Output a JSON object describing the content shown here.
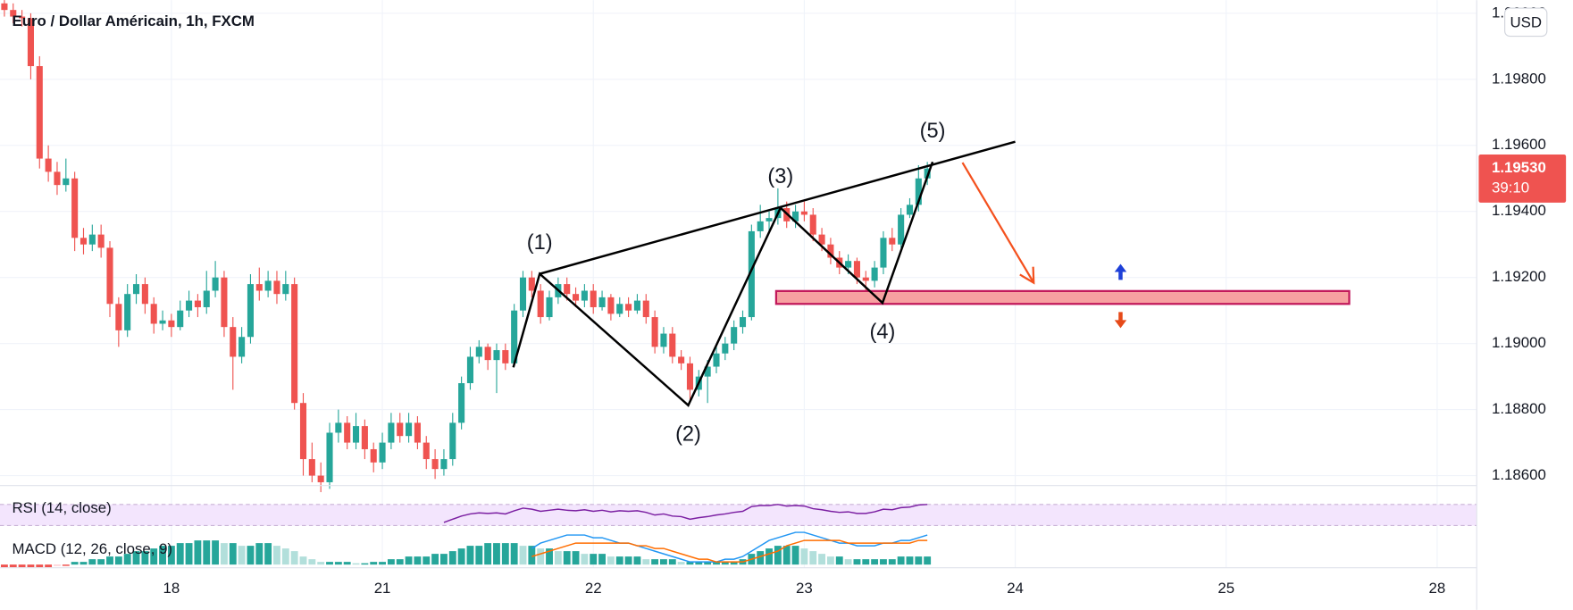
{
  "chart_data": {
    "type": "candlestick",
    "title": "Euro / Dollar Américain, 1h, FXCM",
    "currency": "USD",
    "up_color": "#26a69a",
    "down_color": "#ef5350",
    "grid": true,
    "xlim": [
      -0.5,
      167.5
    ],
    "xticks": [
      {
        "value": 19,
        "label": "18"
      },
      {
        "value": 43,
        "label": "21"
      },
      {
        "value": 67,
        "label": "22"
      },
      {
        "value": 91,
        "label": "23"
      },
      {
        "value": 115,
        "label": "24"
      },
      {
        "value": 139,
        "label": "25"
      },
      {
        "value": 163,
        "label": "28"
      }
    ],
    "ylim": [
      1.1857,
      1.2004
    ],
    "yticks": [
      {
        "value": 1.186,
        "label": "1.18600"
      },
      {
        "value": 1.188,
        "label": "1.18800"
      },
      {
        "value": 1.19,
        "label": "1.19000"
      },
      {
        "value": 1.192,
        "label": "1.19200"
      },
      {
        "value": 1.194,
        "label": "1.19400"
      },
      {
        "value": 1.196,
        "label": "1.19600"
      },
      {
        "value": 1.198,
        "label": "1.19800"
      },
      {
        "value": 1.2,
        "label": "1.20000"
      }
    ],
    "last_price": {
      "value": 1.1953,
      "label": "1.19530"
    },
    "countdown": "39:10",
    "candles": [
      [
        1.2003,
        1.2004,
        1.1999,
        1.2001
      ],
      [
        1.2001,
        1.2003,
        1.1997,
        1.1999
      ],
      [
        1.1999,
        1.2001,
        1.1996,
        1.19985
      ],
      [
        1.19985,
        1.2,
        1.198,
        1.1984
      ],
      [
        1.1984,
        1.1987,
        1.1953,
        1.1956
      ],
      [
        1.1956,
        1.196,
        1.1949,
        1.1952
      ],
      [
        1.1952,
        1.1955,
        1.1945,
        1.1948
      ],
      [
        1.1948,
        1.1956,
        1.1946,
        1.195
      ],
      [
        1.195,
        1.1952,
        1.1928,
        1.1932
      ],
      [
        1.1932,
        1.1935,
        1.1927,
        1.193
      ],
      [
        1.193,
        1.1936,
        1.1928,
        1.1933
      ],
      [
        1.1933,
        1.1936,
        1.1926,
        1.1929
      ],
      [
        1.1929,
        1.1931,
        1.1908,
        1.1912
      ],
      [
        1.1912,
        1.1914,
        1.1899,
        1.1904
      ],
      [
        1.1904,
        1.1918,
        1.1902,
        1.1915
      ],
      [
        1.1915,
        1.1921,
        1.1912,
        1.1918
      ],
      [
        1.1918,
        1.192,
        1.1909,
        1.1912
      ],
      [
        1.1912,
        1.1914,
        1.1903,
        1.1906
      ],
      [
        1.1906,
        1.191,
        1.1904,
        1.1907
      ],
      [
        1.1907,
        1.1909,
        1.1902,
        1.1905
      ],
      [
        1.1905,
        1.1913,
        1.1904,
        1.191
      ],
      [
        1.191,
        1.1916,
        1.1908,
        1.1913
      ],
      [
        1.1913,
        1.1915,
        1.1908,
        1.1911
      ],
      [
        1.1911,
        1.1922,
        1.1909,
        1.1916
      ],
      [
        1.1916,
        1.1925,
        1.1914,
        1.192
      ],
      [
        1.192,
        1.1922,
        1.1902,
        1.1905
      ],
      [
        1.1905,
        1.1908,
        1.1886,
        1.1896
      ],
      [
        1.1896,
        1.1905,
        1.1894,
        1.1902
      ],
      [
        1.1902,
        1.1921,
        1.19,
        1.1918
      ],
      [
        1.1918,
        1.1923,
        1.1913,
        1.1916
      ],
      [
        1.1916,
        1.1922,
        1.1914,
        1.1919
      ],
      [
        1.1919,
        1.1922,
        1.1912,
        1.1915
      ],
      [
        1.1915,
        1.1922,
        1.1913,
        1.1918
      ],
      [
        1.1918,
        1.192,
        1.188,
        1.1882
      ],
      [
        1.1882,
        1.1885,
        1.186,
        1.1865
      ],
      [
        1.1865,
        1.187,
        1.1858,
        1.186
      ],
      [
        1.186,
        1.1864,
        1.1855,
        1.1858
      ],
      [
        1.1858,
        1.1876,
        1.1856,
        1.1873
      ],
      [
        1.1873,
        1.188,
        1.187,
        1.1876
      ],
      [
        1.1876,
        1.1878,
        1.1868,
        1.187
      ],
      [
        1.187,
        1.1879,
        1.1868,
        1.1875
      ],
      [
        1.1875,
        1.1877,
        1.1865,
        1.1868
      ],
      [
        1.1868,
        1.187,
        1.1861,
        1.1864
      ],
      [
        1.1864,
        1.1873,
        1.1862,
        1.187
      ],
      [
        1.187,
        1.1879,
        1.1868,
        1.1876
      ],
      [
        1.1876,
        1.1879,
        1.187,
        1.1872
      ],
      [
        1.1872,
        1.1879,
        1.187,
        1.1876
      ],
      [
        1.1876,
        1.1878,
        1.1868,
        1.187
      ],
      [
        1.187,
        1.1872,
        1.1862,
        1.1865
      ],
      [
        1.1865,
        1.1868,
        1.1859,
        1.1862
      ],
      [
        1.1862,
        1.1868,
        1.186,
        1.1865
      ],
      [
        1.1865,
        1.1879,
        1.1863,
        1.1876
      ],
      [
        1.1876,
        1.189,
        1.1874,
        1.1888
      ],
      [
        1.1888,
        1.1899,
        1.1886,
        1.1896
      ],
      [
        1.1896,
        1.1901,
        1.1894,
        1.1899
      ],
      [
        1.1899,
        1.19,
        1.1892,
        1.1895
      ],
      [
        1.1895,
        1.19,
        1.1885,
        1.1898
      ],
      [
        1.1898,
        1.19,
        1.1892,
        1.1894
      ],
      [
        1.1894,
        1.1912,
        1.1893,
        1.191
      ],
      [
        1.191,
        1.1922,
        1.1908,
        1.192
      ],
      [
        1.192,
        1.1922,
        1.1914,
        1.1916
      ],
      [
        1.1916,
        1.1918,
        1.1906,
        1.1908
      ],
      [
        1.1908,
        1.1916,
        1.1907,
        1.1914
      ],
      [
        1.1914,
        1.192,
        1.1912,
        1.1918
      ],
      [
        1.1918,
        1.192,
        1.1913,
        1.1915
      ],
      [
        1.1915,
        1.1917,
        1.1911,
        1.1913
      ],
      [
        1.1913,
        1.1918,
        1.1911,
        1.1916
      ],
      [
        1.1916,
        1.1918,
        1.1909,
        1.1911
      ],
      [
        1.1911,
        1.1916,
        1.191,
        1.1914
      ],
      [
        1.1914,
        1.1915,
        1.1907,
        1.1909
      ],
      [
        1.1909,
        1.1914,
        1.1908,
        1.1912
      ],
      [
        1.1912,
        1.1914,
        1.1908,
        1.191
      ],
      [
        1.191,
        1.1915,
        1.1909,
        1.1913
      ],
      [
        1.1913,
        1.1915,
        1.1906,
        1.1908
      ],
      [
        1.1908,
        1.191,
        1.1897,
        1.1899
      ],
      [
        1.1899,
        1.1905,
        1.1897,
        1.1903
      ],
      [
        1.1903,
        1.1905,
        1.1894,
        1.1896
      ],
      [
        1.1896,
        1.1898,
        1.1892,
        1.1894
      ],
      [
        1.1894,
        1.1896,
        1.1882,
        1.1886
      ],
      [
        1.1886,
        1.1892,
        1.1884,
        1.189
      ],
      [
        1.189,
        1.1895,
        1.1882,
        1.1893
      ],
      [
        1.1893,
        1.1899,
        1.1891,
        1.1897
      ],
      [
        1.1897,
        1.1902,
        1.1895,
        1.19
      ],
      [
        1.19,
        1.1907,
        1.1898,
        1.1905
      ],
      [
        1.1905,
        1.191,
        1.1903,
        1.1908
      ],
      [
        1.1908,
        1.1936,
        1.1907,
        1.1934
      ],
      [
        1.1934,
        1.1942,
        1.1932,
        1.1937
      ],
      [
        1.1937,
        1.194,
        1.1934,
        1.1938
      ],
      [
        1.1938,
        1.1947,
        1.1936,
        1.1941
      ],
      [
        1.1941,
        1.1943,
        1.1935,
        1.1937
      ],
      [
        1.1937,
        1.1942,
        1.1935,
        1.194
      ],
      [
        1.194,
        1.1943,
        1.1937,
        1.1939
      ],
      [
        1.1939,
        1.1941,
        1.1931,
        1.1933
      ],
      [
        1.1933,
        1.1935,
        1.1928,
        1.193
      ],
      [
        1.193,
        1.1932,
        1.1924,
        1.1926
      ],
      [
        1.1926,
        1.1928,
        1.1921,
        1.1923
      ],
      [
        1.1923,
        1.1927,
        1.1921,
        1.1925
      ],
      [
        1.1925,
        1.1926,
        1.1918,
        1.192
      ],
      [
        1.192,
        1.1922,
        1.1914,
        1.1919
      ],
      [
        1.1919,
        1.1925,
        1.1917,
        1.1923
      ],
      [
        1.1923,
        1.1934,
        1.1921,
        1.1932
      ],
      [
        1.1932,
        1.1935,
        1.1928,
        1.193
      ],
      [
        1.193,
        1.1941,
        1.1929,
        1.1939
      ],
      [
        1.1939,
        1.1944,
        1.1938,
        1.1942
      ],
      [
        1.1942,
        1.1954,
        1.194,
        1.195
      ],
      [
        1.195,
        1.1955,
        1.1948,
        1.1953
      ]
    ],
    "wave": {
      "color": "#000000",
      "points": [
        [
          57.9,
          1.18928
        ],
        [
          60.9,
          1.19211
        ],
        [
          77.8,
          1.18813
        ],
        [
          88.3,
          1.19411
        ],
        [
          99.9,
          1.19123
        ],
        [
          105.6,
          1.1955
        ]
      ],
      "labels": [
        "(1)",
        "(2)",
        "(3)",
        "(4)",
        "(5)"
      ]
    },
    "trendline": {
      "color": "#000000",
      "points": [
        [
          60.9,
          1.19211
        ],
        [
          115,
          1.19611
        ]
      ]
    },
    "zone": {
      "x": [
        87.8,
        153
      ],
      "y": [
        1.1912,
        1.19159
      ],
      "fill": "#f7a1a1",
      "stroke": "#c2185b"
    },
    "arrow": {
      "color": "#f4511e",
      "from": [
        109,
        1.19548
      ],
      "to": [
        117.1,
        1.19184
      ]
    },
    "rsi": {
      "title": "RSI (14, close)",
      "color": "#7b1fa2",
      "band_color": "#f3e5fd",
      "bands": [
        30,
        70
      ],
      "ylim": [
        26,
        102
      ],
      "values": [
        null,
        null,
        null,
        null,
        null,
        null,
        null,
        null,
        null,
        null,
        null,
        null,
        null,
        null,
        null,
        null,
        null,
        null,
        null,
        null,
        null,
        null,
        null,
        null,
        null,
        null,
        null,
        null,
        null,
        null,
        null,
        null,
        null,
        null,
        null,
        null,
        null,
        null,
        null,
        null,
        null,
        null,
        null,
        null,
        null,
        null,
        null,
        null,
        null,
        null,
        36,
        42,
        48,
        52,
        54,
        53,
        54,
        52,
        58,
        63,
        61,
        57,
        59,
        61,
        59,
        58,
        60,
        57,
        59,
        56,
        58,
        57,
        58,
        55,
        50,
        52,
        48,
        47,
        42,
        45,
        47,
        50,
        52,
        55,
        57,
        66,
        68,
        68,
        70,
        67,
        68,
        67,
        62,
        60,
        57,
        55,
        56,
        53,
        53,
        56,
        61,
        60,
        64,
        65,
        69,
        70
      ]
    },
    "macd": {
      "title": "MACD (12, 26, close, 9)",
      "ylim": [
        -0.00012,
        0.0013
      ],
      "macd_color": "#2196f3",
      "signal_color": "#ff6d00",
      "hist_colors": [
        "#26a69a",
        "#b2dfdb",
        "#ef5350",
        "#ffcdd2"
      ],
      "histogram": [
        -0.0001,
        -0.0001,
        -0.0001,
        -0.0001,
        -0.0001,
        -0.0001,
        -5e-05,
        -5e-05,
        0.0001,
        0.0001,
        0.0002,
        0.0002,
        0.0003,
        0.0003,
        0.0004,
        0.0005,
        0.0005,
        0.0006,
        0.0007,
        0.0007,
        0.0008,
        0.0008,
        0.0009,
        0.0009,
        0.0009,
        0.0008,
        0.0008,
        0.0007,
        0.0007,
        0.0008,
        0.0008,
        0.0007,
        0.0006,
        0.0005,
        0.0003,
        0.0002,
        0.0001,
        0.0001,
        0.0001,
        0.0001,
        5e-05,
        5e-05,
        0.0001,
        0.0001,
        0.0002,
        0.0002,
        0.0003,
        0.0003,
        0.0003,
        0.0004,
        0.0004,
        0.0005,
        0.0006,
        0.0007,
        0.0007,
        0.0008,
        0.0008,
        0.0008,
        0.0008,
        0.0007,
        0.0007,
        0.0006,
        0.0006,
        0.0005,
        0.0005,
        0.0005,
        0.0004,
        0.0004,
        0.0004,
        0.0003,
        0.0003,
        0.0003,
        0.0003,
        0.0002,
        0.0002,
        0.0002,
        0.0002,
        0.0001,
        0.0001,
        0.0001,
        0.0001,
        0.0001,
        0.0001,
        0.0001,
        0.0002,
        0.0004,
        0.0005,
        0.0006,
        0.0007,
        0.0007,
        0.0007,
        0.0006,
        0.0005,
        0.0004,
        0.0003,
        0.0003,
        0.0002,
        0.0002,
        0.0002,
        0.0002,
        0.0002,
        0.0002,
        0.0003,
        0.0003,
        0.0003,
        0.0003
      ],
      "macd": [
        null,
        null,
        null,
        null,
        null,
        null,
        null,
        null,
        null,
        null,
        null,
        null,
        null,
        null,
        null,
        null,
        null,
        null,
        null,
        null,
        null,
        null,
        null,
        null,
        null,
        null,
        null,
        null,
        null,
        null,
        null,
        null,
        null,
        null,
        null,
        null,
        null,
        null,
        null,
        null,
        null,
        null,
        null,
        null,
        null,
        null,
        null,
        null,
        null,
        null,
        null,
        null,
        null,
        null,
        null,
        null,
        null,
        null,
        null,
        null,
        0.0006,
        0.0008,
        0.0009,
        0.001,
        0.0011,
        0.0011,
        0.0011,
        0.001,
        0.001,
        0.0009,
        0.0008,
        0.0008,
        0.0007,
        0.0006,
        0.0005,
        0.0004,
        0.0003,
        0.0002,
        0.0001,
        0.0001,
        0.0001,
        0.0001,
        0.0002,
        0.0002,
        0.0003,
        0.0005,
        0.0007,
        0.0009,
        0.001,
        0.0011,
        0.0012,
        0.0012,
        0.0011,
        0.001,
        0.0009,
        0.0008,
        0.0008,
        0.0007,
        0.0007,
        0.0007,
        0.0008,
        0.0008,
        0.0009,
        0.0009,
        0.001,
        0.0011
      ],
      "signal": [
        null,
        null,
        null,
        null,
        null,
        null,
        null,
        null,
        null,
        null,
        null,
        null,
        null,
        null,
        null,
        null,
        null,
        null,
        null,
        null,
        null,
        null,
        null,
        null,
        null,
        null,
        null,
        null,
        null,
        null,
        null,
        null,
        null,
        null,
        null,
        null,
        null,
        null,
        null,
        null,
        null,
        null,
        null,
        null,
        null,
        null,
        null,
        null,
        null,
        null,
        null,
        null,
        null,
        null,
        null,
        null,
        null,
        null,
        null,
        null,
        0.0003,
        0.0004,
        0.0005,
        0.0006,
        0.0007,
        0.0008,
        0.0008,
        0.0008,
        0.0008,
        0.0008,
        0.0008,
        0.0008,
        0.0007,
        0.0007,
        0.0006,
        0.0006,
        0.0005,
        0.0004,
        0.0003,
        0.0002,
        0.0002,
        0.0001,
        0.0001,
        0.0001,
        0.0001,
        0.0002,
        0.0003,
        0.0004,
        0.0005,
        0.0007,
        0.0008,
        0.0009,
        0.0009,
        0.0009,
        0.0009,
        0.0009,
        0.0008,
        0.0008,
        0.0008,
        0.0008,
        0.0008,
        0.0008,
        0.0008,
        0.0008,
        0.0009,
        0.0009
      ]
    }
  }
}
